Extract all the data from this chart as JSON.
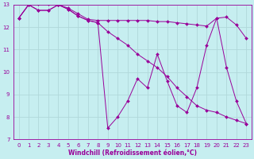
{
  "xlabel": "Windchill (Refroidissement éolien,°C)",
  "background_color": "#c6eef0",
  "grid_color": "#b0d8da",
  "line_color": "#990099",
  "xlim_min": -0.5,
  "xlim_max": 23.5,
  "ylim_min": 7,
  "ylim_max": 13,
  "xticks": [
    0,
    1,
    2,
    3,
    4,
    5,
    6,
    7,
    8,
    9,
    10,
    11,
    12,
    13,
    14,
    15,
    16,
    17,
    18,
    19,
    20,
    21,
    22,
    23
  ],
  "yticks": [
    7,
    8,
    9,
    10,
    11,
    12,
    13
  ],
  "series1": [
    12.4,
    13.0,
    13.05,
    13.05,
    13.0,
    12.85,
    12.6,
    12.35,
    12.3,
    12.3,
    12.3,
    12.3,
    12.3,
    12.3,
    12.25,
    12.25,
    12.2,
    12.15,
    12.1,
    12.05,
    12.4,
    12.45,
    12.1,
    11.5
  ],
  "series2": [
    12.4,
    13.0,
    12.75,
    12.75,
    13.0,
    12.8,
    12.5,
    12.3,
    12.2,
    11.8,
    11.5,
    11.2,
    10.8,
    10.5,
    10.2,
    9.8,
    9.3,
    8.9,
    8.5,
    8.3,
    8.2,
    8.0,
    7.85,
    7.7
  ],
  "series3": [
    12.4,
    13.0,
    12.75,
    12.75,
    13.0,
    12.8,
    12.5,
    12.3,
    12.2,
    7.5,
    8.0,
    8.7,
    9.7,
    9.3,
    10.8,
    9.6,
    8.5,
    8.2,
    9.3,
    11.2,
    12.4,
    10.2,
    8.7,
    7.7
  ],
  "xlabel_fontsize": 5.5,
  "tick_fontsize": 5,
  "marker_size": 2.0,
  "line_width": 0.7
}
